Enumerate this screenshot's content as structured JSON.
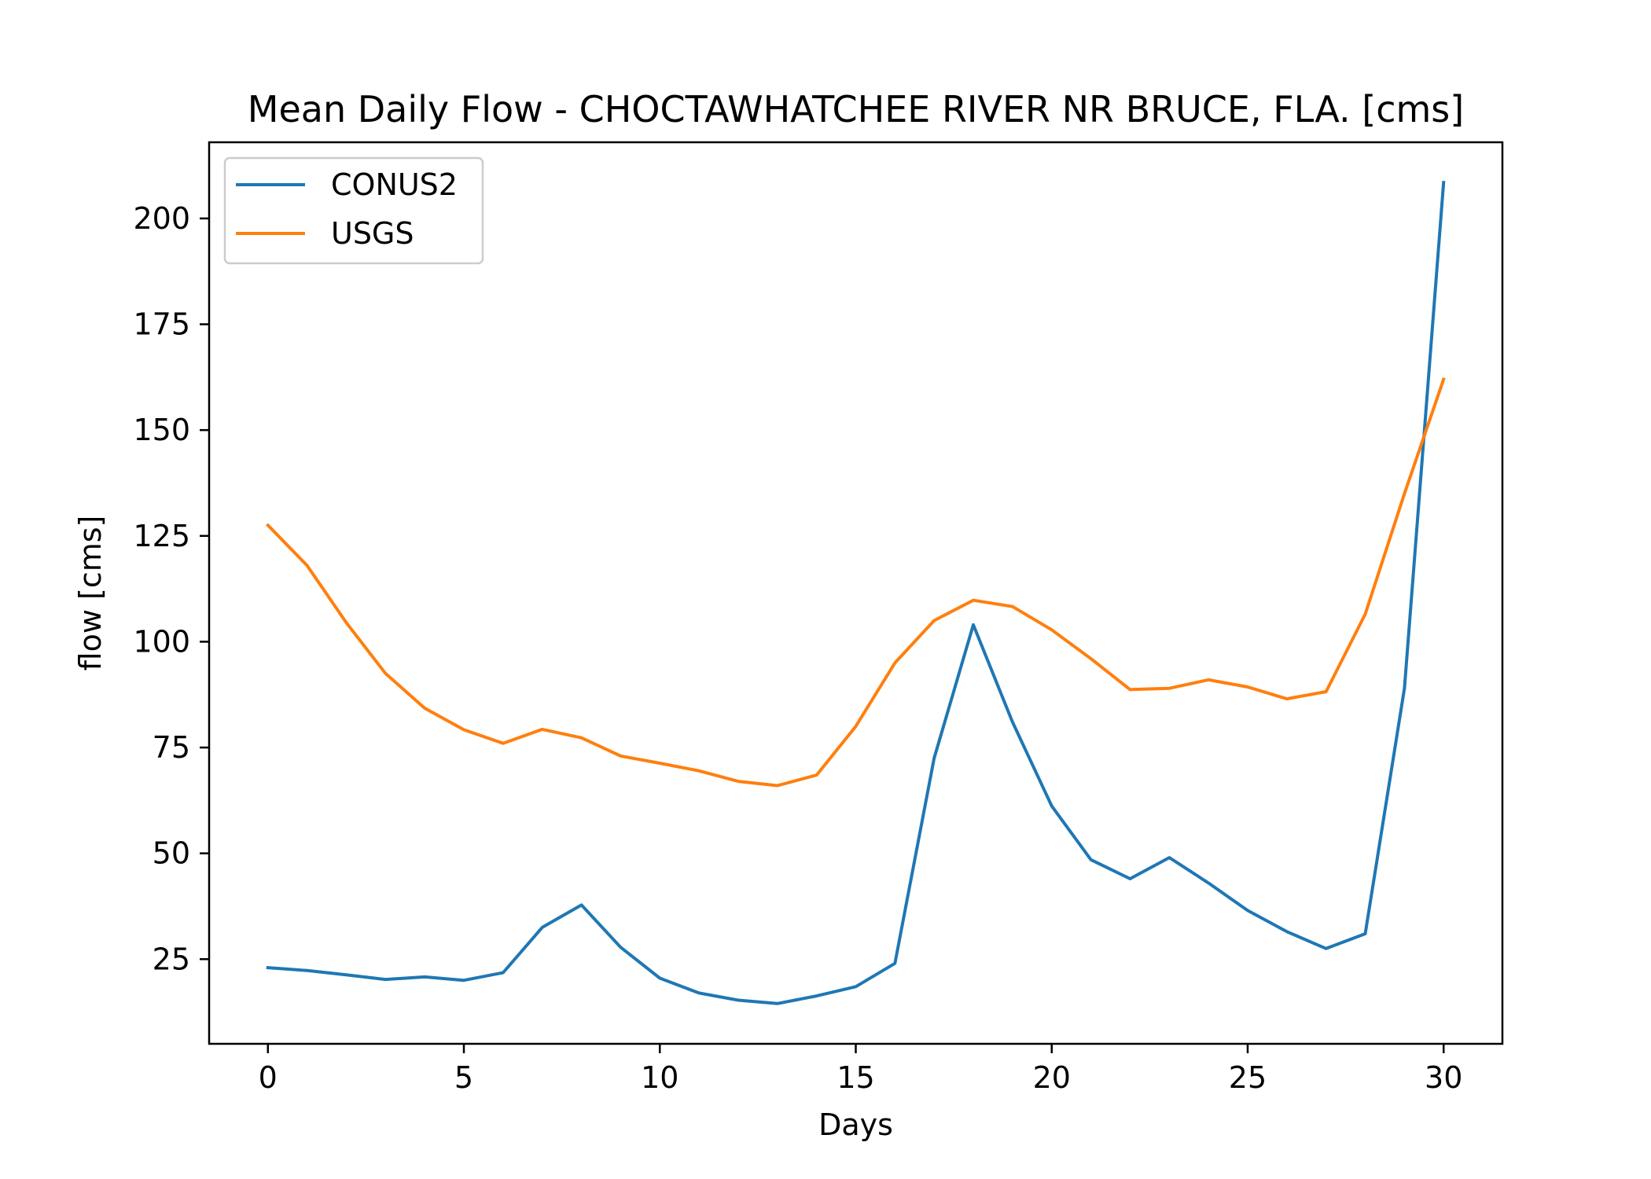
{
  "chart_data": {
    "type": "line",
    "title": "Mean Daily Flow - CHOCTAWHATCHEE RIVER NR BRUCE, FLA. [cms]",
    "xlabel": "Days",
    "ylabel": "flow [cms]",
    "xlim": [
      -1.5,
      31.5
    ],
    "ylim": [
      5,
      218
    ],
    "xticks": [
      0,
      5,
      10,
      15,
      20,
      25,
      30
    ],
    "yticks": [
      25,
      50,
      75,
      100,
      125,
      150,
      175,
      200
    ],
    "grid": false,
    "legend_position": "top-left",
    "x": [
      0,
      1,
      2,
      3,
      4,
      5,
      6,
      7,
      8,
      9,
      10,
      11,
      12,
      13,
      14,
      15,
      16,
      17,
      18,
      19,
      20,
      21,
      22,
      23,
      24,
      25,
      26,
      27,
      28,
      29,
      30
    ],
    "series": [
      {
        "name": "CONUS2",
        "color": "#1f77b4",
        "values": [
          23,
          22.3,
          21.3,
          20.2,
          20.8,
          20,
          21.8,
          32.5,
          37.8,
          27.8,
          20.5,
          17,
          15.3,
          14.5,
          16.3,
          18.5,
          24,
          72.5,
          104,
          81,
          61.2,
          48.5,
          44,
          49,
          43,
          36.5,
          31.5,
          27.5,
          31,
          89,
          208.5
        ]
      },
      {
        "name": "USGS",
        "color": "#ff7f0e",
        "values": [
          127.5,
          118,
          104.5,
          92.5,
          84.3,
          79.2,
          76,
          79.3,
          77.3,
          73,
          71.3,
          69.5,
          67,
          66,
          68.5,
          80,
          95,
          105,
          109.8,
          108.3,
          102.8,
          96,
          88.7,
          89,
          91,
          89.3,
          86.5,
          88.2,
          106.5,
          135,
          162
        ]
      }
    ]
  }
}
